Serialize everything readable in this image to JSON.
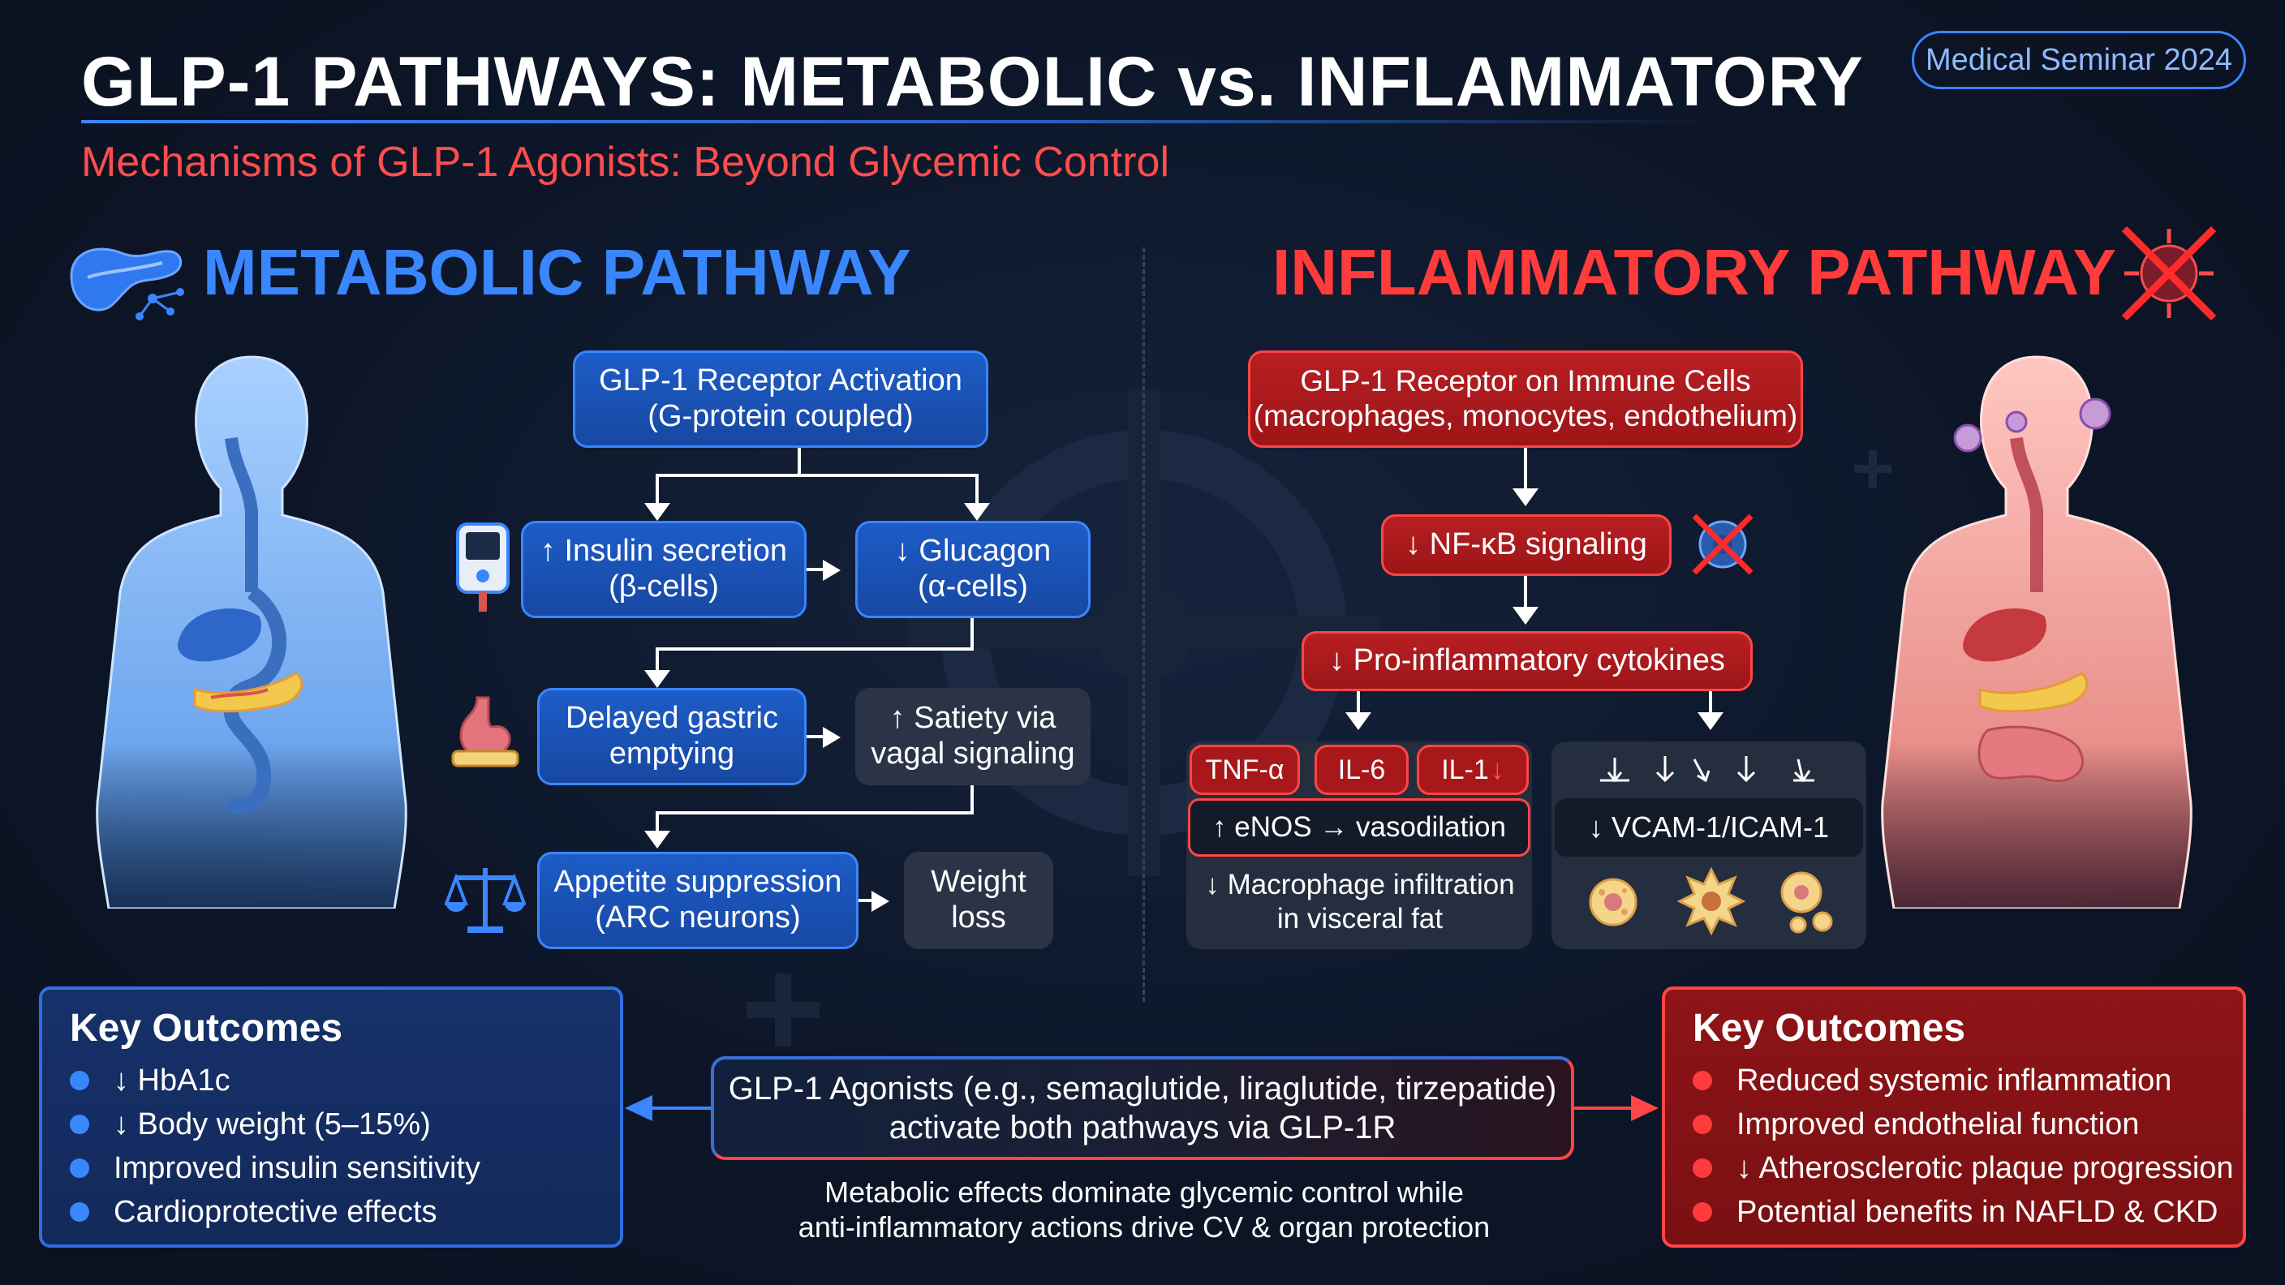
{
  "header": {
    "title": "GLP-1 PATHWAYS: METABOLIC vs. INFLAMMATORY",
    "subtitle": "Mechanisms of GLP-1 Agonists: Beyond Glycemic Control",
    "badge": "Medical Seminar 2024"
  },
  "metabolic": {
    "heading": "METABOLIC PATHWAY",
    "receptor_line1": "GLP-1 Receptor Activation",
    "receptor_line2": "(G-protein coupled)",
    "insulin_line1": "↑ Insulin secretion",
    "insulin_line2": "(β-cells)",
    "glucagon_line1": "↓ Glucagon",
    "glucagon_line2": "(α-cells)",
    "gastric_line1": "Delayed gastric",
    "gastric_line2": "emptying",
    "satiety_line1": "↑ Satiety via",
    "satiety_line2": "vagal signaling",
    "appetite_line1": "Appetite suppression",
    "appetite_line2": "(ARC neurons)",
    "weight_line1": "Weight",
    "weight_line2": "loss"
  },
  "inflammatory": {
    "heading": "INFLAMMATORY PATHWAY",
    "receptor_line1": "GLP-1 Receptor on Immune Cells",
    "receptor_line2": "(macrophages, monocytes, endothelium)",
    "nfkb": "↓ NF-κB signaling",
    "cytokines": "↓ Pro-inflammatory cytokines",
    "tnf": "TNF-α",
    "il6": "IL-6",
    "il1": "IL-1",
    "enos": "↑ eNOS → vasodilation",
    "macro_line1": "↓ Macrophage infiltration",
    "macro_line2": "in visceral fat",
    "vcam": "↓ VCAM-1/ICAM-1"
  },
  "outcomes_left": {
    "title": "Key Outcomes",
    "items": [
      "↓ HbA1c",
      "↓ Body weight (5–15%)",
      "Improved insulin sensitivity",
      "Cardioprotective effects"
    ]
  },
  "outcomes_right": {
    "title": "Key Outcomes",
    "items": [
      "Reduced systemic inflammation",
      "Improved endothelial function",
      "↓ Atherosclerotic plaque progression",
      "Potential benefits in NAFLD & CKD"
    ]
  },
  "center": {
    "line1": "GLP-1 Agonists (e.g., semaglutide, liraglutide, tirzepatide)",
    "line2": "activate both pathways via GLP-1R",
    "note_line1": "Metabolic effects dominate glycemic control while",
    "note_line2": "anti-inflammatory actions drive CV & organ protection"
  },
  "colors": {
    "metabolic": "#3a86ff",
    "inflammatory": "#ff3b3b",
    "background": "#0d1628"
  }
}
